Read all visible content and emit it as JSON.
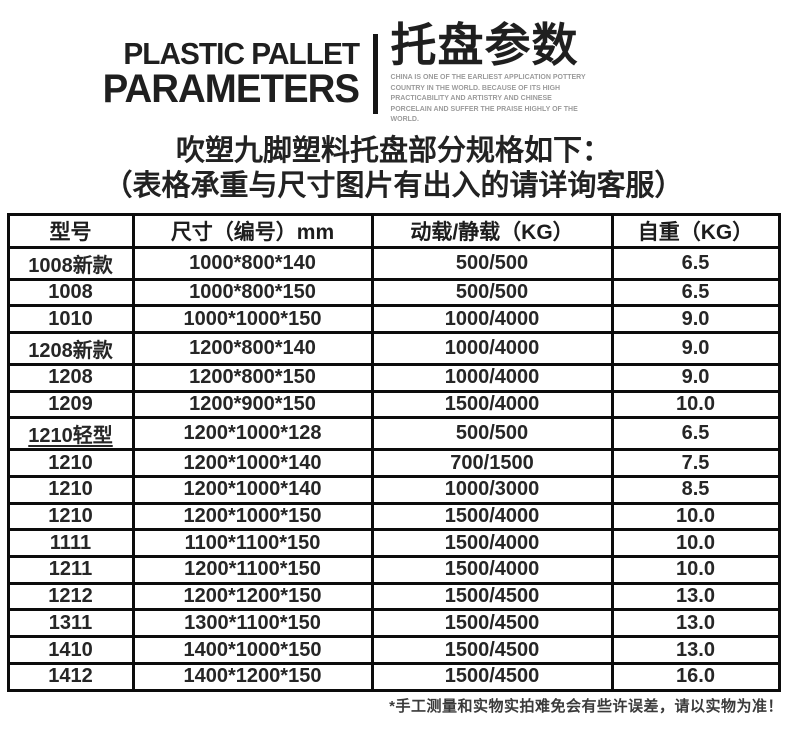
{
  "header": {
    "title_en_line1": "PLASTIC PALLET",
    "title_en_line2": "PARAMETERS",
    "title_cn": "托盘参数",
    "subtext": "CHINA IS ONE OF THE EARLIEST APPLICATION POTTERY COUNTRY IN THE WORLD. BECAUSE OF ITS HIGH PRACTICABILITY AND ARTISTRY AND CHINESE PORCELAIN AND SUFFER THE PRAISE HIGHLY OF THE WORLD."
  },
  "intro": {
    "line1": "吹塑九脚塑料托盘部分规格如下：",
    "line2": "（表格承重与尺寸图片有出入的请详询客服）"
  },
  "table": {
    "columns": [
      "型号",
      "尺寸（编号）mm",
      "动载/静载（KG）",
      "自重（KG）"
    ],
    "rows": [
      {
        "model": "1008新款",
        "size": "1000*800*140",
        "load": "500/500",
        "weight": "6.5"
      },
      {
        "model": "1008",
        "size": "1000*800*150",
        "load": "500/500",
        "weight": "6.5"
      },
      {
        "model": "1010",
        "size": "1000*1000*150",
        "load": "1000/4000",
        "weight": "9.0"
      },
      {
        "model": "1208新款",
        "size": "1200*800*140",
        "load": "1000/4000",
        "weight": "9.0"
      },
      {
        "model": "1208",
        "size": "1200*800*150",
        "load": "1000/4000",
        "weight": "9.0"
      },
      {
        "model": "1209",
        "size": "1200*900*150",
        "load": "1500/4000",
        "weight": "10.0"
      },
      {
        "model": "1210轻型",
        "size": "1200*1000*128",
        "load": "500/500",
        "weight": "6.5",
        "underline": true
      },
      {
        "model": "1210",
        "size": "1200*1000*140",
        "load": "700/1500",
        "weight": "7.5"
      },
      {
        "model": "1210",
        "size": "1200*1000*140",
        "load": "1000/3000",
        "weight": "8.5"
      },
      {
        "model": "1210",
        "size": "1200*1000*150",
        "load": "1500/4000",
        "weight": "10.0"
      },
      {
        "model": "1111",
        "size": "1100*1100*150",
        "load": "1500/4000",
        "weight": "10.0"
      },
      {
        "model": "1211",
        "size": "1200*1100*150",
        "load": "1500/4000",
        "weight": "10.0"
      },
      {
        "model": "1212",
        "size": "1200*1200*150",
        "load": "1500/4500",
        "weight": "13.0"
      },
      {
        "model": "1311",
        "size": "1300*1100*150",
        "load": "1500/4500",
        "weight": "13.0"
      },
      {
        "model": "1410",
        "size": "1400*1000*150",
        "load": "1500/4500",
        "weight": "13.0"
      },
      {
        "model": "1412",
        "size": "1400*1200*150",
        "load": "1500/4500",
        "weight": "16.0"
      }
    ]
  },
  "footer": {
    "note": "*手工测量和实物实拍难免会有些许误差，请以实物为准！"
  },
  "colors": {
    "text": "#1f1f1f",
    "table_border": "#0c0c0c",
    "subtext_gray": "#9c9c9c"
  }
}
